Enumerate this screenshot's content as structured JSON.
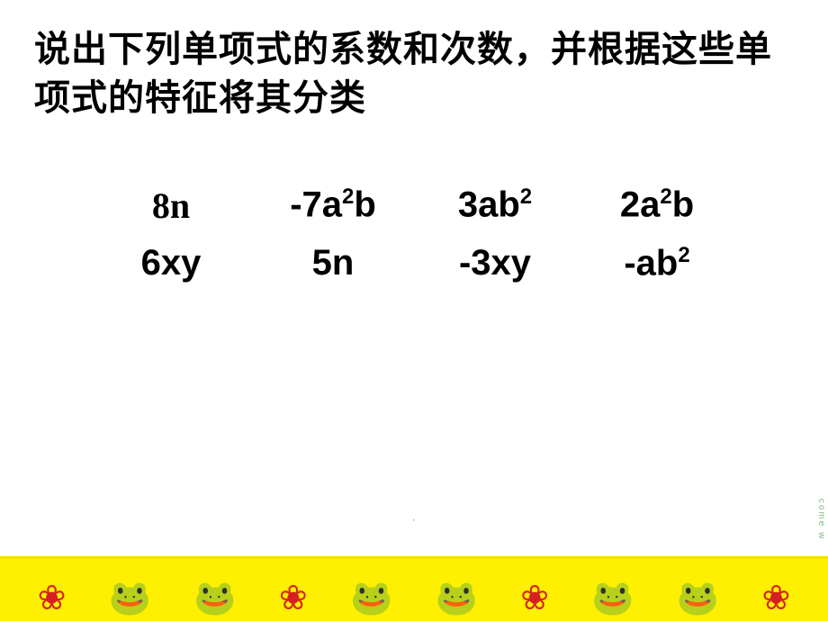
{
  "instruction": "说出下列单项式的系数和次数，并根据这些单项式的特征将其分类",
  "terms": {
    "r1c1": "8n",
    "r1c2_pre": "-7a",
    "r1c2_sup": "2",
    "r1c2_post": "b",
    "r1c3_pre": "3ab",
    "r1c3_sup": "2",
    "r1c4_pre": "2a",
    "r1c4_sup": "2",
    "r1c4_post": "b",
    "r2c1": "6xy",
    "r2c2": "5n",
    "r2c3": "-3xy",
    "r2c4_pre": "-ab",
    "r2c4_sup": "2"
  },
  "footer": {
    "band_color": "#ffef00",
    "icons": [
      "❀",
      "🐸",
      "🐸",
      "❀",
      "🐸",
      "🐸",
      "❀",
      "🐸",
      "🐸",
      "❀"
    ]
  },
  "sidetag": "come w",
  "dot": "·",
  "colors": {
    "text": "#000000",
    "background": "#ffffff"
  }
}
